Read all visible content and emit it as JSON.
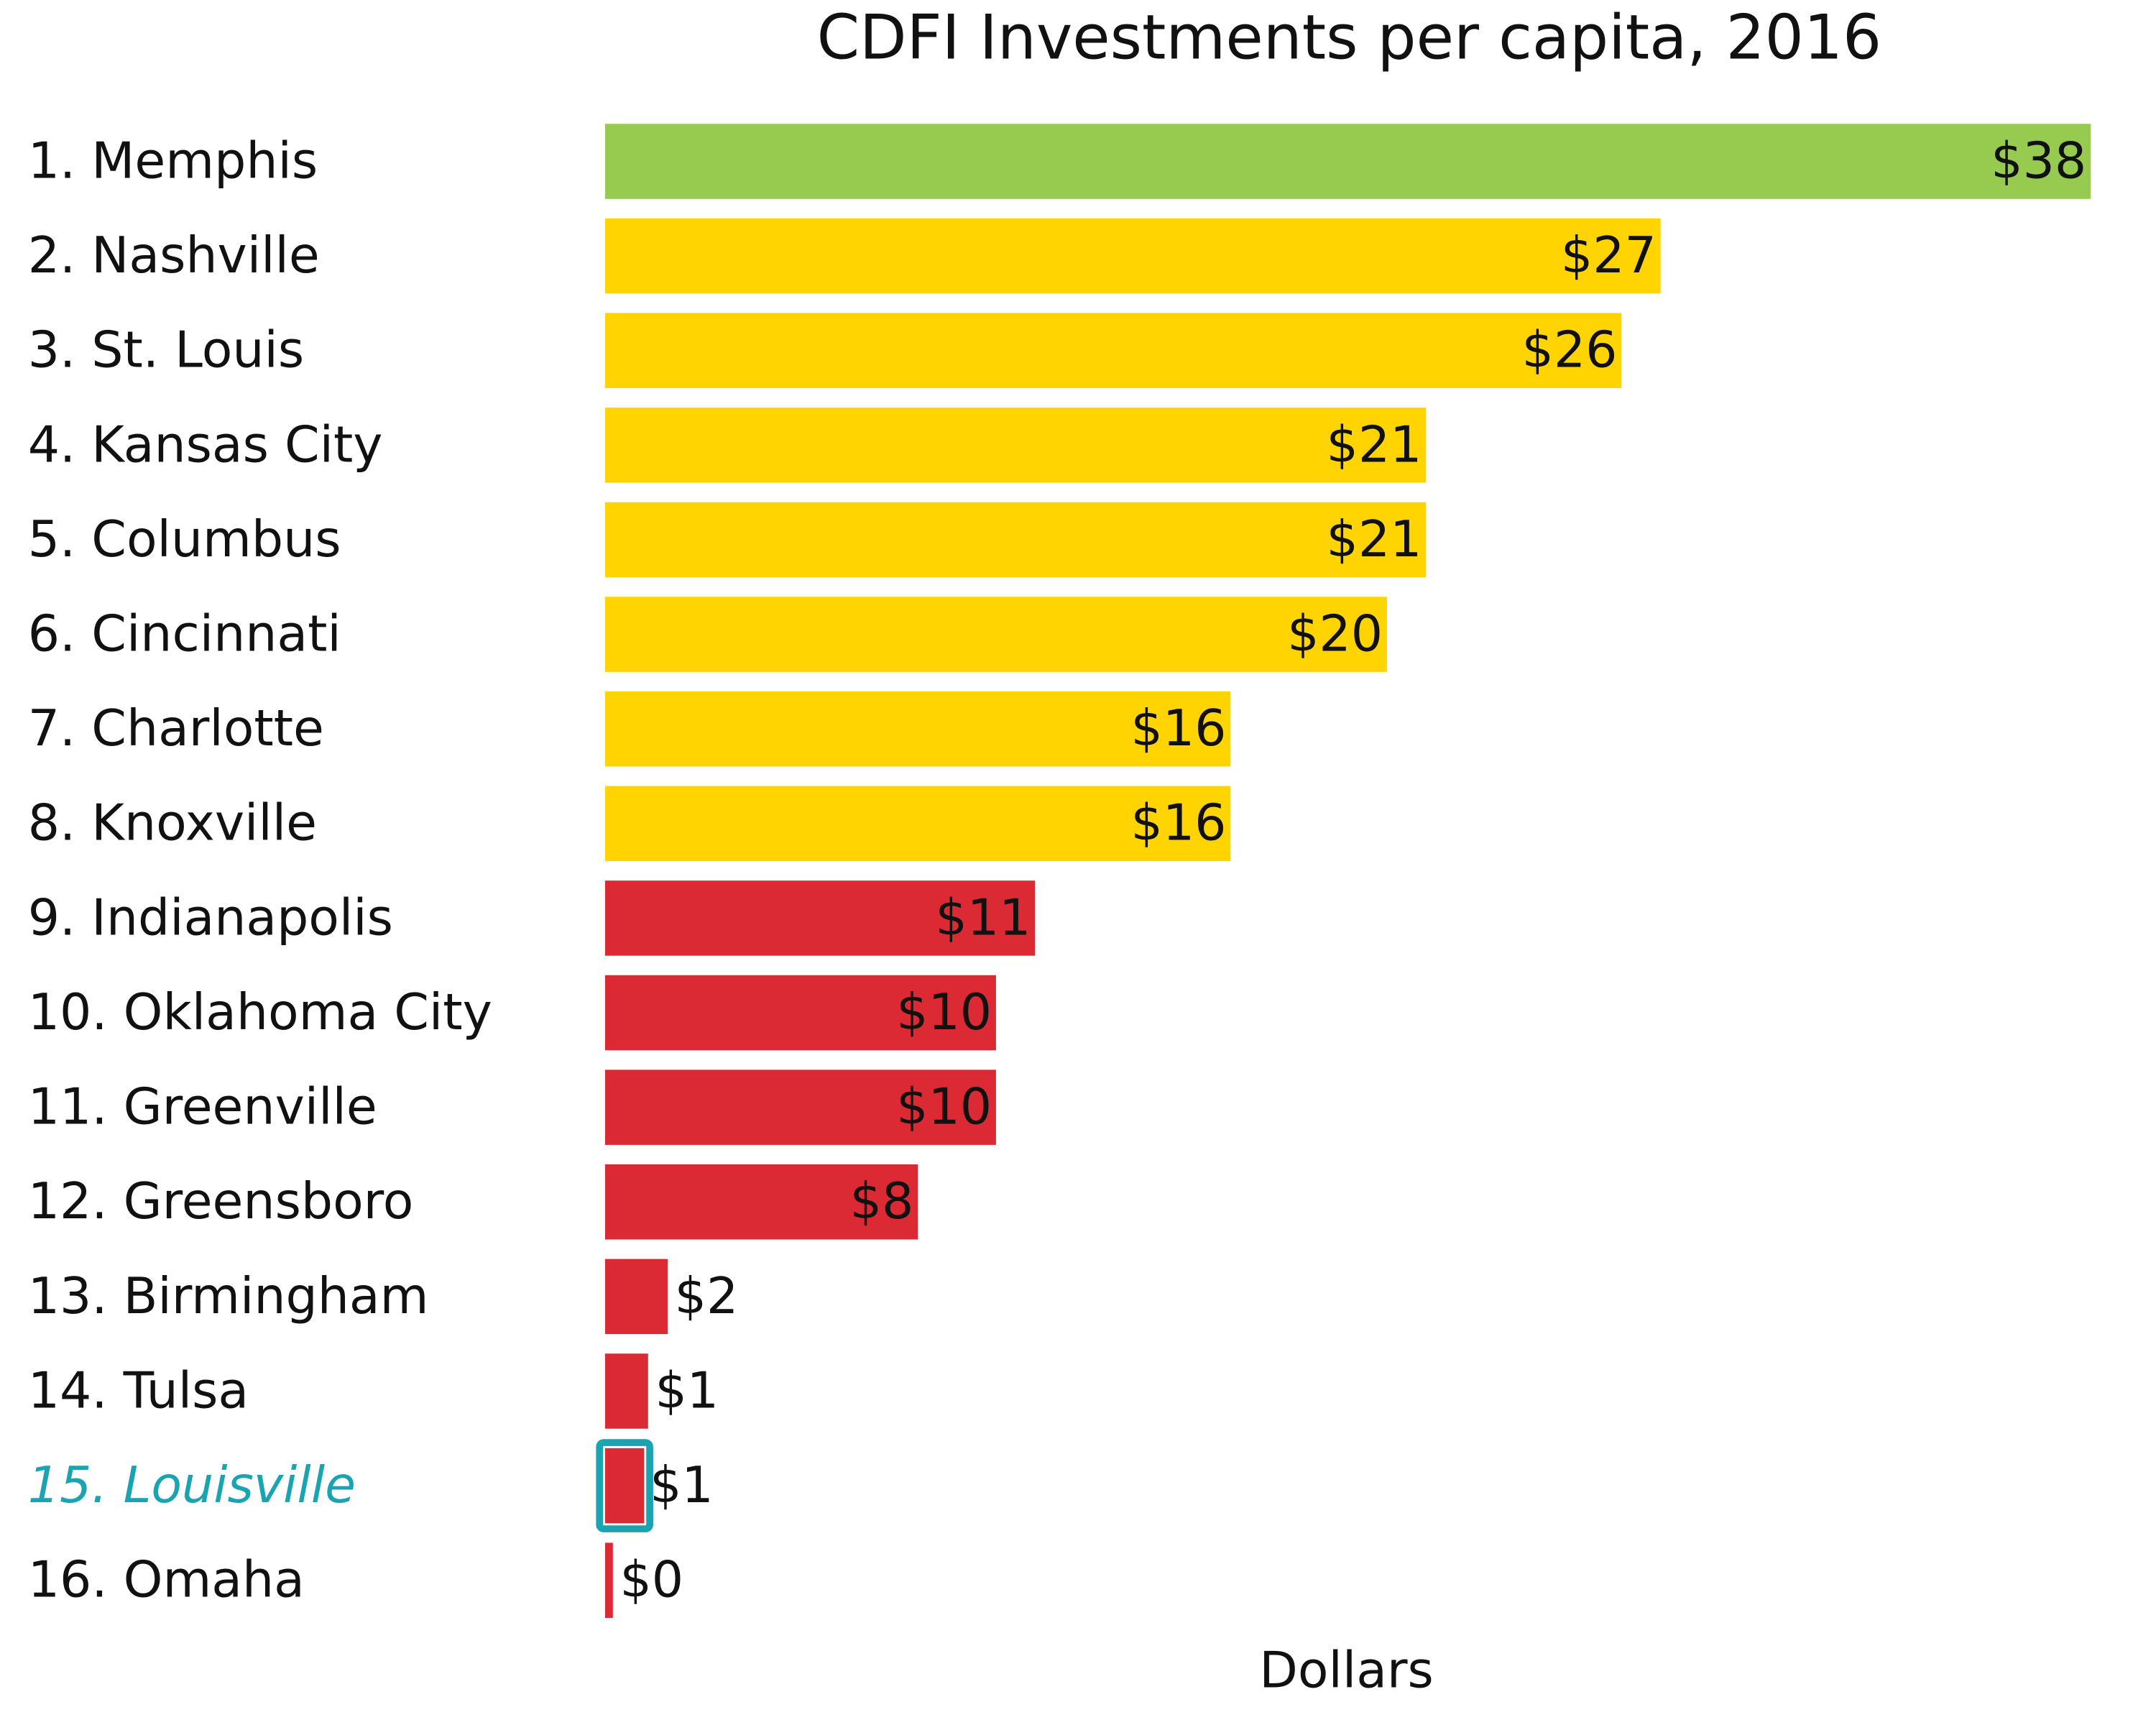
{
  "chart_data": {
    "type": "hbar",
    "title": "CDFI Investments per capita, 2016",
    "x_label": "Dollars",
    "categories": [
      "1. Memphis",
      "2. Nashville",
      "3. St. Louis",
      "4. Kansas City",
      "5. Columbus",
      "6. Cincinnati",
      "7. Charlotte",
      "8. Knoxville",
      "9. Indianapolis",
      "10. Oklahoma City",
      "11. Greenville",
      "12. Greensboro",
      "13. Birmingham",
      "14. Tulsa",
      "15. Louisville",
      "16. Omaha"
    ],
    "values": [
      38,
      27,
      26,
      21,
      21,
      20,
      16,
      16,
      11,
      10,
      10,
      8,
      1.6,
      1.1,
      1.0,
      0.2
    ],
    "value_labels": [
      "$38",
      "$27",
      "$26",
      "$21",
      "$21",
      "$20",
      "$16",
      "$16",
      "$11",
      "$10",
      "$10",
      "$8",
      "$2",
      "$1",
      "$1",
      "$0"
    ],
    "colors": [
      "#97cb4f",
      "#ffd400",
      "#ffd400",
      "#ffd400",
      "#ffd400",
      "#ffd400",
      "#ffd400",
      "#ffd400",
      "#dc2a34",
      "#dc2a34",
      "#dc2a34",
      "#dc2a34",
      "#dc2a34",
      "#dc2a34",
      "#dc2a34",
      "#dc2a34"
    ],
    "highlight_index": 14,
    "highlight_color": "#1aa3b0",
    "xlim": [
      0,
      38
    ]
  }
}
